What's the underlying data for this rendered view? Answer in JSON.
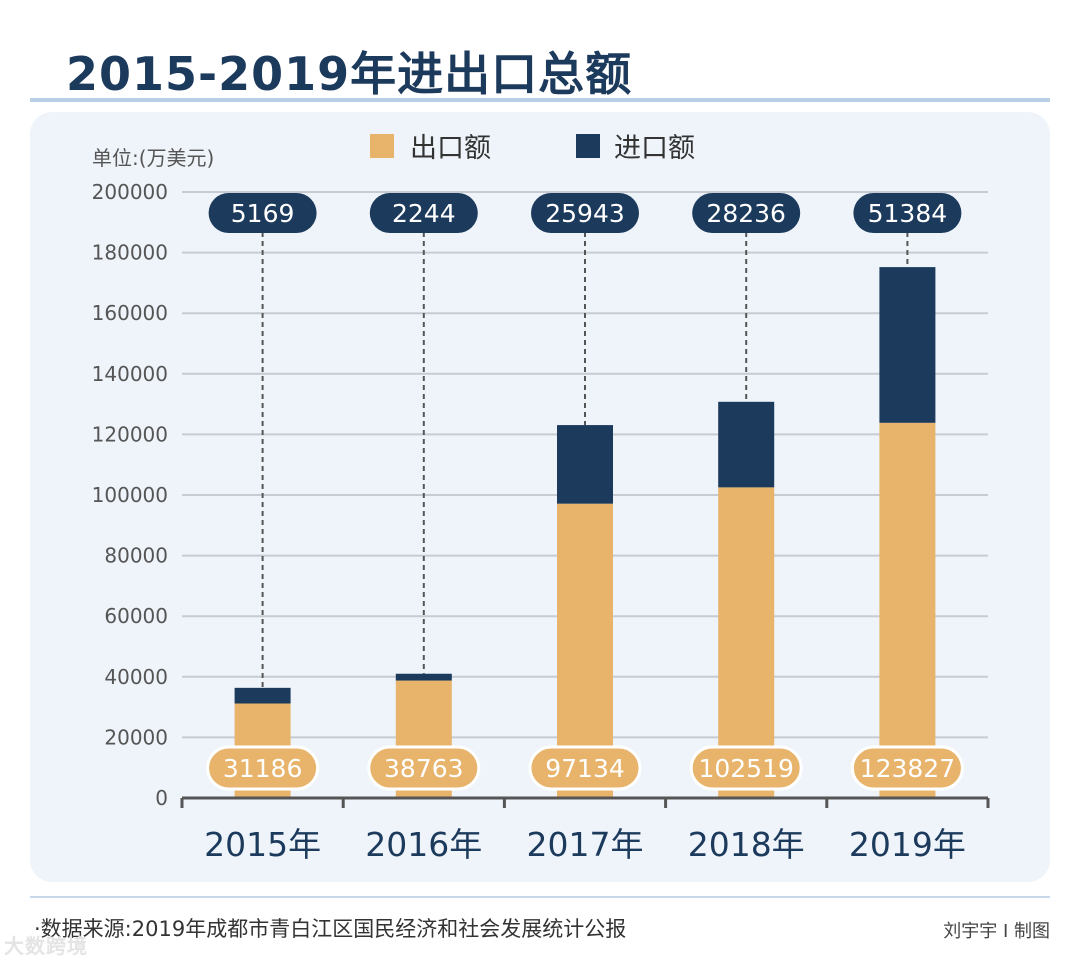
{
  "page": {
    "title": "2015-2019年进出口总额",
    "source": "·数据来源:2019年成都市青白江区国民经济和社会发展统计公报",
    "credit": "刘宇宇 I 制图",
    "watermark": "大数跨境"
  },
  "colors": {
    "export": "#e8b46b",
    "import": "#1c3a5c",
    "grid": "#c7ccd2",
    "axis": "#555555"
  },
  "chart_data": {
    "type": "bar",
    "stacked": true,
    "title": "2015-2019年进出口总额",
    "unit_label": "单位:(万美元)",
    "categories": [
      "2015年",
      "2016年",
      "2017年",
      "2018年",
      "2019年"
    ],
    "series": [
      {
        "name": "出口额",
        "values": [
          31186,
          38763,
          97134,
          102519,
          123827
        ]
      },
      {
        "name": "进口额",
        "values": [
          5169,
          2244,
          25943,
          28236,
          51384
        ]
      }
    ],
    "ylim": [
      0,
      200000
    ],
    "yticks": [
      0,
      20000,
      40000,
      60000,
      80000,
      100000,
      120000,
      140000,
      160000,
      180000,
      200000
    ],
    "legend_position": "top"
  }
}
